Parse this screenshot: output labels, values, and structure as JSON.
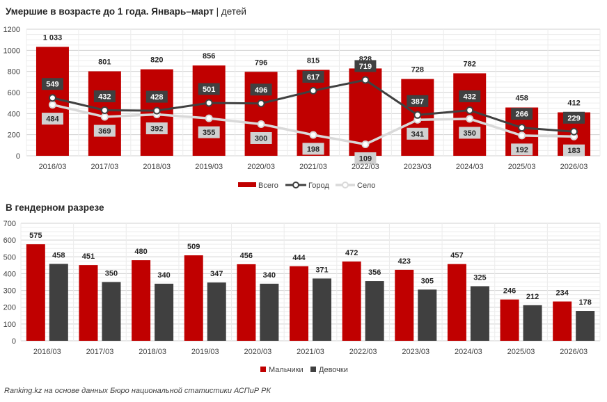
{
  "chart_title_main": "Умершие в возрасте до 1 года. Январь–март",
  "chart_title_unit": "детей",
  "chart2_title": "В гендерном разрезе",
  "source": "Ranking.kz на основе данных Бюро национальной статистики АСПиР РК",
  "colors": {
    "red": "#c00000",
    "dark": "#404040",
    "gray": "#bfbfbf",
    "line_dark": "#404040",
    "line_light": "#d9d9d9"
  },
  "chart_data": [
    {
      "type": "bar",
      "title": "Умершие в возрасте до 1 года. Январь–март | детей",
      "categories": [
        "2016/03",
        "2017/03",
        "2018/03",
        "2019/03",
        "2020/03",
        "2021/03",
        "2022/03",
        "2023/03",
        "2024/03",
        "2025/03",
        "2026/03"
      ],
      "ylim": [
        0,
        1200
      ],
      "yticks": [
        0,
        200,
        400,
        600,
        800,
        1000,
        1200
      ],
      "grid": true,
      "legend": "bottom",
      "series": [
        {
          "name": "Всего",
          "type": "bar",
          "color": "#c00000",
          "values": [
            1033,
            801,
            820,
            856,
            796,
            815,
            828,
            728,
            782,
            458,
            412
          ],
          "labels": [
            "1 033",
            "801",
            "820",
            "856",
            "796",
            "815",
            "828",
            "728",
            "782",
            "458",
            "412"
          ]
        },
        {
          "name": "Город",
          "type": "line",
          "color": "#404040",
          "values": [
            549,
            432,
            428,
            501,
            496,
            617,
            719,
            387,
            432,
            266,
            229
          ]
        },
        {
          "name": "Село",
          "type": "line",
          "color": "#d9d9d9",
          "values": [
            484,
            369,
            392,
            355,
            300,
            198,
            109,
            341,
            350,
            192,
            183
          ]
        }
      ]
    },
    {
      "type": "bar",
      "title": "В гендерном разрезе",
      "categories": [
        "2016/03",
        "2017/03",
        "2018/03",
        "2019/03",
        "2020/03",
        "2021/03",
        "2022/03",
        "2023/03",
        "2024/03",
        "2025/03",
        "2026/03"
      ],
      "ylim": [
        0,
        700
      ],
      "yticks": [
        0,
        100,
        200,
        300,
        400,
        500,
        600,
        700
      ],
      "grid": true,
      "legend": "bottom",
      "series": [
        {
          "name": "Мальчики",
          "color": "#c00000",
          "values": [
            575,
            451,
            480,
            509,
            456,
            444,
            472,
            423,
            457,
            246,
            234
          ]
        },
        {
          "name": "Девочки",
          "color": "#404040",
          "values": [
            458,
            350,
            340,
            347,
            340,
            371,
            356,
            305,
            325,
            212,
            178
          ]
        }
      ]
    }
  ]
}
